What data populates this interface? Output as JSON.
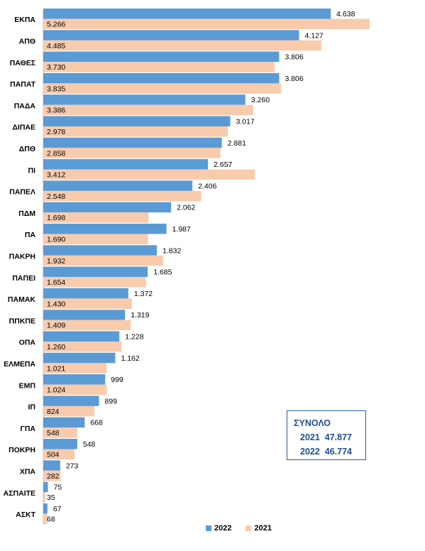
{
  "chart_data": {
    "type": "bar",
    "orientation": "horizontal",
    "categories": [
      "ΕΚΠΑ",
      "ΑΠΘ",
      "ΠΑΘΕΣ",
      "ΠΑΠΑΤ",
      "ΠΑΔΑ",
      "ΔΙΠΑΕ",
      "ΔΠΘ",
      "ΠΙ",
      "ΠΑΠΕΛ",
      "ΠΔΜ",
      "ΠΑ",
      "ΠΑΚΡΗ",
      "ΠΑΠΕΙ",
      "ΠΑΜΑΚ",
      "ΠΠΚΠΕ",
      "ΟΠΑ",
      "ΕΛΜΕΠΑ",
      "ΕΜΠ",
      "ΙΠ",
      "ΓΠΑ",
      "ΠΟΚΡΗ",
      "ΧΠΑ",
      "ΑΣΠΑΙΤΕ",
      "ΑΣΚΤ"
    ],
    "series": [
      {
        "name": "2022",
        "color": "#5b9bd5",
        "values": [
          4638,
          4127,
          3806,
          3806,
          3260,
          3017,
          2881,
          2657,
          2406,
          2062,
          1987,
          1832,
          1685,
          1372,
          1319,
          1228,
          1162,
          999,
          899,
          668,
          548,
          273,
          75,
          67
        ],
        "labels": [
          "4.638",
          "4.127",
          "3.806",
          "3.806",
          "3.260",
          "3.017",
          "2.881",
          "2.657",
          "2.406",
          "2.062",
          "1.987",
          "1.832",
          "1.685",
          "1.372",
          "1.319",
          "1.228",
          "1.162",
          "999",
          "899",
          "668",
          "548",
          "273",
          "75",
          "67"
        ]
      },
      {
        "name": "2021",
        "color": "#f8cbad",
        "values": [
          5266,
          4485,
          3730,
          3835,
          3386,
          2978,
          2858,
          3412,
          2548,
          1698,
          1690,
          1932,
          1654,
          1430,
          1409,
          1260,
          1021,
          1024,
          824,
          548,
          504,
          282,
          35,
          68
        ],
        "labels": [
          "5.266",
          "4.485",
          "3.730",
          "3.835",
          "3.386",
          "2.978",
          "2.858",
          "3.412",
          "2.548",
          "1.698",
          "1.690",
          "1.932",
          "1.654",
          "1.430",
          "1.409",
          "1.260",
          "1.021",
          "1.024",
          "824",
          "548",
          "504",
          "282",
          "35",
          "68"
        ]
      }
    ],
    "xlim": [
      0,
      5266
    ],
    "grid": false,
    "legend_position": "bottom"
  },
  "totals": {
    "title": "ΣΥΝΟΛΟ",
    "row_2021": "2021  47.877",
    "row_2022": "2022  46.774"
  },
  "legend": {
    "label_2022": "2022",
    "label_2021": "2021"
  }
}
